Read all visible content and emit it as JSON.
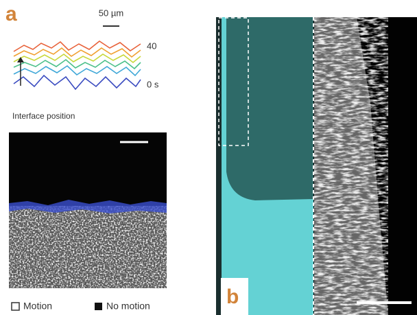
{
  "panel_a": {
    "label": "a",
    "scale_bar_label": "50 µm",
    "time_top_label": "40",
    "time_bottom_label": "0 s",
    "caption": "Interface position",
    "legend": [
      "Motion",
      "No motion"
    ]
  },
  "panel_b": {
    "label": "b"
  }
}
